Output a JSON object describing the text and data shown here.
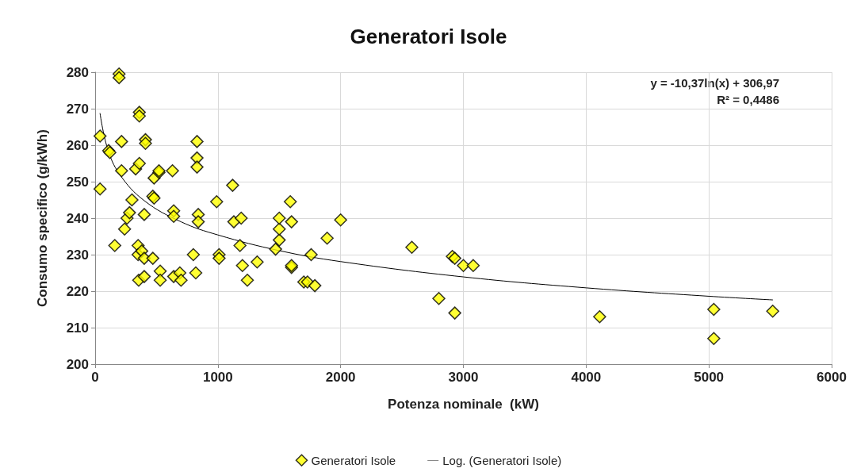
{
  "chart_data": {
    "type": "scatter",
    "title": "Generatori Isole",
    "xlabel": "Potenza nominale  (kW)",
    "ylabel": "Consumo specifico (g/kWh)",
    "annotations": [
      "y = -10,37ln(x) + 306,97",
      "R² = 0,4486"
    ],
    "xlim": [
      0,
      6000
    ],
    "xticks": [
      0,
      1000,
      2000,
      3000,
      4000,
      5000,
      6000
    ],
    "ylim": [
      200,
      280
    ],
    "yticks": [
      200,
      210,
      220,
      230,
      240,
      250,
      260,
      270,
      280
    ],
    "grid": true,
    "legend": "bottom",
    "series": [
      {
        "name": "Generatori Isole",
        "color": "#ffff00",
        "marker": "diamond",
        "x": [
          40,
          40,
          110,
          120,
          160,
          195,
          195,
          215,
          215,
          240,
          260,
          280,
          300,
          330,
          350,
          350,
          355,
          360,
          360,
          360,
          380,
          400,
          400,
          400,
          410,
          410,
          470,
          470,
          480,
          480,
          520,
          520,
          530,
          530,
          630,
          640,
          640,
          640,
          690,
          700,
          800,
          820,
          830,
          830,
          830,
          840,
          840,
          990,
          1010,
          1010,
          1120,
          1130,
          1180,
          1190,
          1200,
          1240,
          1320,
          1470,
          1500,
          1500,
          1500,
          1590,
          1600,
          1600,
          1600,
          1700,
          1730,
          1760,
          1790,
          1890,
          2000,
          2580,
          2800,
          2910,
          2930,
          2930,
          3000,
          3080,
          4110,
          5040,
          5040,
          5520
        ],
        "values": [
          262.5,
          248,
          258.5,
          258,
          232.5,
          279.5,
          278.5,
          261,
          253,
          237,
          240,
          241.5,
          245,
          253.5,
          232.5,
          230,
          223,
          269,
          268,
          255,
          231,
          241,
          229,
          224,
          261.5,
          260.5,
          229,
          246,
          251,
          245.5,
          252.5,
          253,
          225.5,
          223,
          253,
          242,
          240.5,
          224,
          225,
          223,
          230,
          225,
          261,
          256.5,
          254,
          241,
          239,
          244.5,
          230,
          229,
          249,
          239,
          232.5,
          240,
          227,
          223,
          228,
          231.5,
          234,
          237,
          240,
          244.5,
          239,
          226.5,
          227,
          222.5,
          222.5,
          230,
          221.5,
          234.5,
          239.5,
          232,
          218,
          229.5,
          229,
          214,
          227,
          227,
          213,
          215,
          207,
          214.5
        ]
      },
      {
        "name": "Log. (Generatori Isole)",
        "type": "line",
        "color": "#000000",
        "marker": "none",
        "line_style": "solid",
        "x": [
          40,
          100,
          200,
          400,
          700,
          1000,
          1500,
          2000,
          3000,
          4000,
          5000,
          5520
        ],
        "values": [
          268.7,
          259.2,
          252,
          244.8,
          239,
          235.4,
          231.1,
          228.1,
          223.9,
          220.9,
          218.6,
          217.6
        ]
      }
    ]
  }
}
